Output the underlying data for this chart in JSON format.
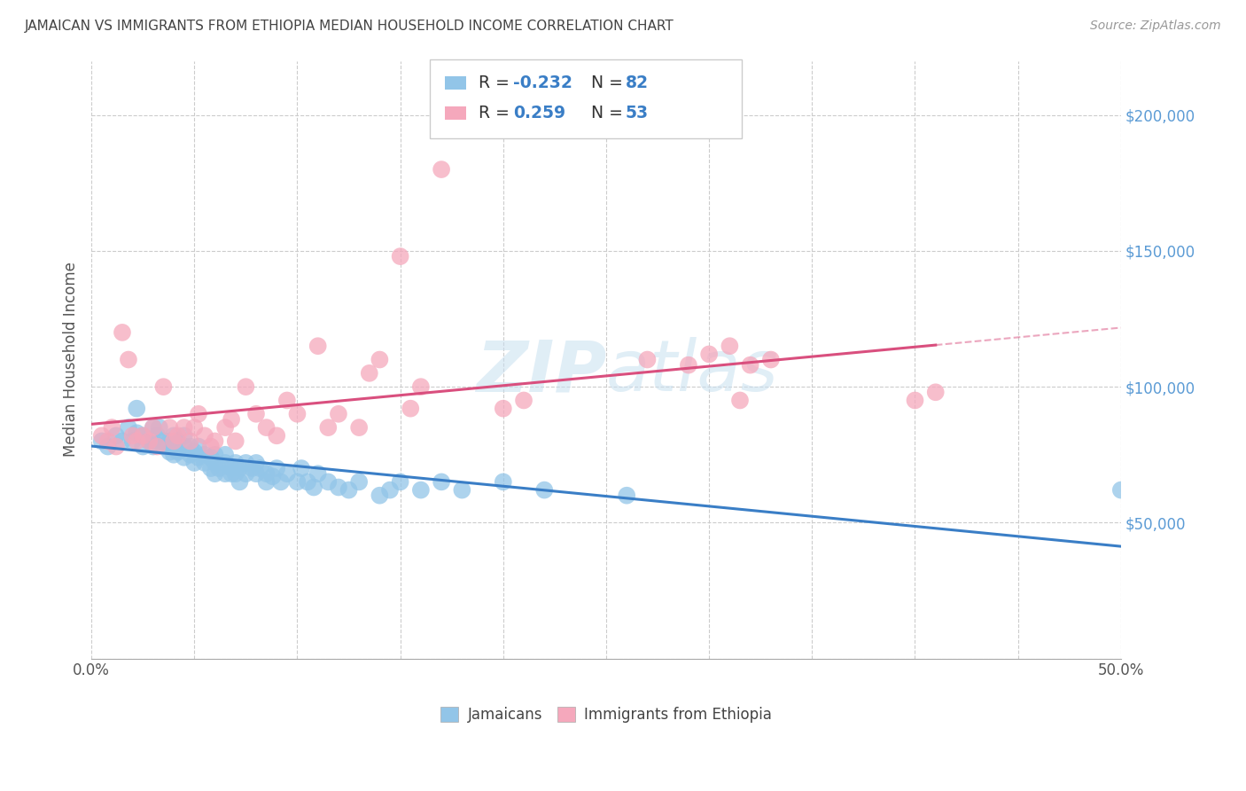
{
  "title": "JAMAICAN VS IMMIGRANTS FROM ETHIOPIA MEDIAN HOUSEHOLD INCOME CORRELATION CHART",
  "source": "Source: ZipAtlas.com",
  "ylabel": "Median Household Income",
  "xlim": [
    0.0,
    0.5
  ],
  "ylim": [
    0,
    220000
  ],
  "blue_color": "#92C5E8",
  "pink_color": "#F5A8BC",
  "blue_line_color": "#3A7EC6",
  "pink_line_color": "#D94F7E",
  "watermark": "ZIPatlas",
  "jamaicans_x": [
    0.005,
    0.008,
    0.012,
    0.015,
    0.018,
    0.02,
    0.022,
    0.022,
    0.025,
    0.025,
    0.028,
    0.03,
    0.03,
    0.03,
    0.032,
    0.033,
    0.035,
    0.035,
    0.038,
    0.038,
    0.04,
    0.04,
    0.04,
    0.042,
    0.042,
    0.045,
    0.045,
    0.045,
    0.048,
    0.048,
    0.05,
    0.05,
    0.052,
    0.052,
    0.055,
    0.055,
    0.058,
    0.058,
    0.06,
    0.06,
    0.06,
    0.062,
    0.065,
    0.065,
    0.065,
    0.068,
    0.068,
    0.07,
    0.07,
    0.072,
    0.072,
    0.075,
    0.075,
    0.078,
    0.08,
    0.08,
    0.082,
    0.085,
    0.085,
    0.088,
    0.09,
    0.092,
    0.095,
    0.1,
    0.102,
    0.105,
    0.108,
    0.11,
    0.115,
    0.12,
    0.125,
    0.13,
    0.14,
    0.145,
    0.15,
    0.16,
    0.17,
    0.18,
    0.2,
    0.22,
    0.26,
    0.5
  ],
  "jamaicans_y": [
    80000,
    78000,
    82000,
    80000,
    85000,
    80000,
    83000,
    92000,
    78000,
    82000,
    80000,
    85000,
    78000,
    80000,
    82000,
    85000,
    78000,
    80000,
    76000,
    80000,
    75000,
    78000,
    82000,
    80000,
    76000,
    74000,
    78000,
    82000,
    75000,
    78000,
    72000,
    76000,
    74000,
    78000,
    72000,
    75000,
    70000,
    74000,
    72000,
    68000,
    75000,
    70000,
    68000,
    72000,
    75000,
    70000,
    68000,
    72000,
    68000,
    70000,
    65000,
    68000,
    72000,
    70000,
    68000,
    72000,
    70000,
    68000,
    65000,
    67000,
    70000,
    65000,
    68000,
    65000,
    70000,
    65000,
    63000,
    68000,
    65000,
    63000,
    62000,
    65000,
    60000,
    62000,
    65000,
    62000,
    65000,
    62000,
    65000,
    62000,
    60000,
    62000
  ],
  "ethiopia_x": [
    0.005,
    0.008,
    0.01,
    0.012,
    0.015,
    0.018,
    0.02,
    0.022,
    0.025,
    0.028,
    0.03,
    0.032,
    0.035,
    0.038,
    0.04,
    0.042,
    0.045,
    0.048,
    0.05,
    0.052,
    0.055,
    0.058,
    0.06,
    0.065,
    0.068,
    0.07,
    0.075,
    0.08,
    0.085,
    0.09,
    0.095,
    0.1,
    0.11,
    0.115,
    0.12,
    0.13,
    0.135,
    0.14,
    0.15,
    0.155,
    0.16,
    0.17,
    0.2,
    0.21,
    0.27,
    0.29,
    0.3,
    0.31,
    0.315,
    0.32,
    0.33,
    0.4,
    0.41
  ],
  "ethiopia_y": [
    82000,
    80000,
    85000,
    78000,
    120000,
    110000,
    82000,
    80000,
    82000,
    80000,
    85000,
    78000,
    100000,
    85000,
    80000,
    82000,
    85000,
    80000,
    85000,
    90000,
    82000,
    78000,
    80000,
    85000,
    88000,
    80000,
    100000,
    90000,
    85000,
    82000,
    95000,
    90000,
    115000,
    85000,
    90000,
    85000,
    105000,
    110000,
    148000,
    92000,
    100000,
    180000,
    92000,
    95000,
    110000,
    108000,
    112000,
    115000,
    95000,
    108000,
    110000,
    95000,
    98000
  ]
}
